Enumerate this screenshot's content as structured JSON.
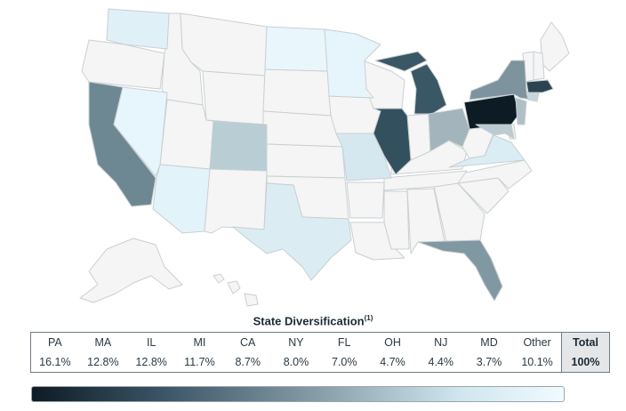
{
  "title": "State Diversification",
  "title_footnote": "(1)",
  "states": [
    {
      "code": "PA",
      "pct": "16.1%"
    },
    {
      "code": "MA",
      "pct": "12.8%"
    },
    {
      "code": "IL",
      "pct": "12.8%"
    },
    {
      "code": "MI",
      "pct": "11.7%"
    },
    {
      "code": "CA",
      "pct": "8.7%"
    },
    {
      "code": "NY",
      "pct": "8.0%"
    },
    {
      "code": "FL",
      "pct": "7.0%"
    },
    {
      "code": "OH",
      "pct": "4.7%"
    },
    {
      "code": "NJ",
      "pct": "4.4%"
    },
    {
      "code": "MD",
      "pct": "3.7%"
    },
    {
      "code": "Other",
      "pct": "10.1%"
    }
  ],
  "total": {
    "label": "Total",
    "value": "100%"
  },
  "colors": {
    "PA": "#0c1b24",
    "MA": "#2b4451",
    "IL": "#33505e",
    "MI": "#3a5766",
    "CA": "#6e8893",
    "NY": "#7d939e",
    "FL": "#8098a2",
    "OH": "#a3b4bc",
    "NJ": "#b0c0c8",
    "MD": "#bccbd2",
    "CO": "#b9cdd4",
    "WA": "#dff0f7",
    "NV": "#e6f6fc",
    "AZ": "#e2f3fa",
    "TX": "#dcecf3",
    "MN": "#e6f5fb",
    "ND": "#e9f7fc",
    "MO": "#d6e8ef",
    "VA": "#dbedf4",
    "CT": "#c7d6dd",
    "other_light": "#f5f5f5"
  },
  "legend_gradient": [
    "#0d1b25",
    "#f0fbff"
  ]
}
